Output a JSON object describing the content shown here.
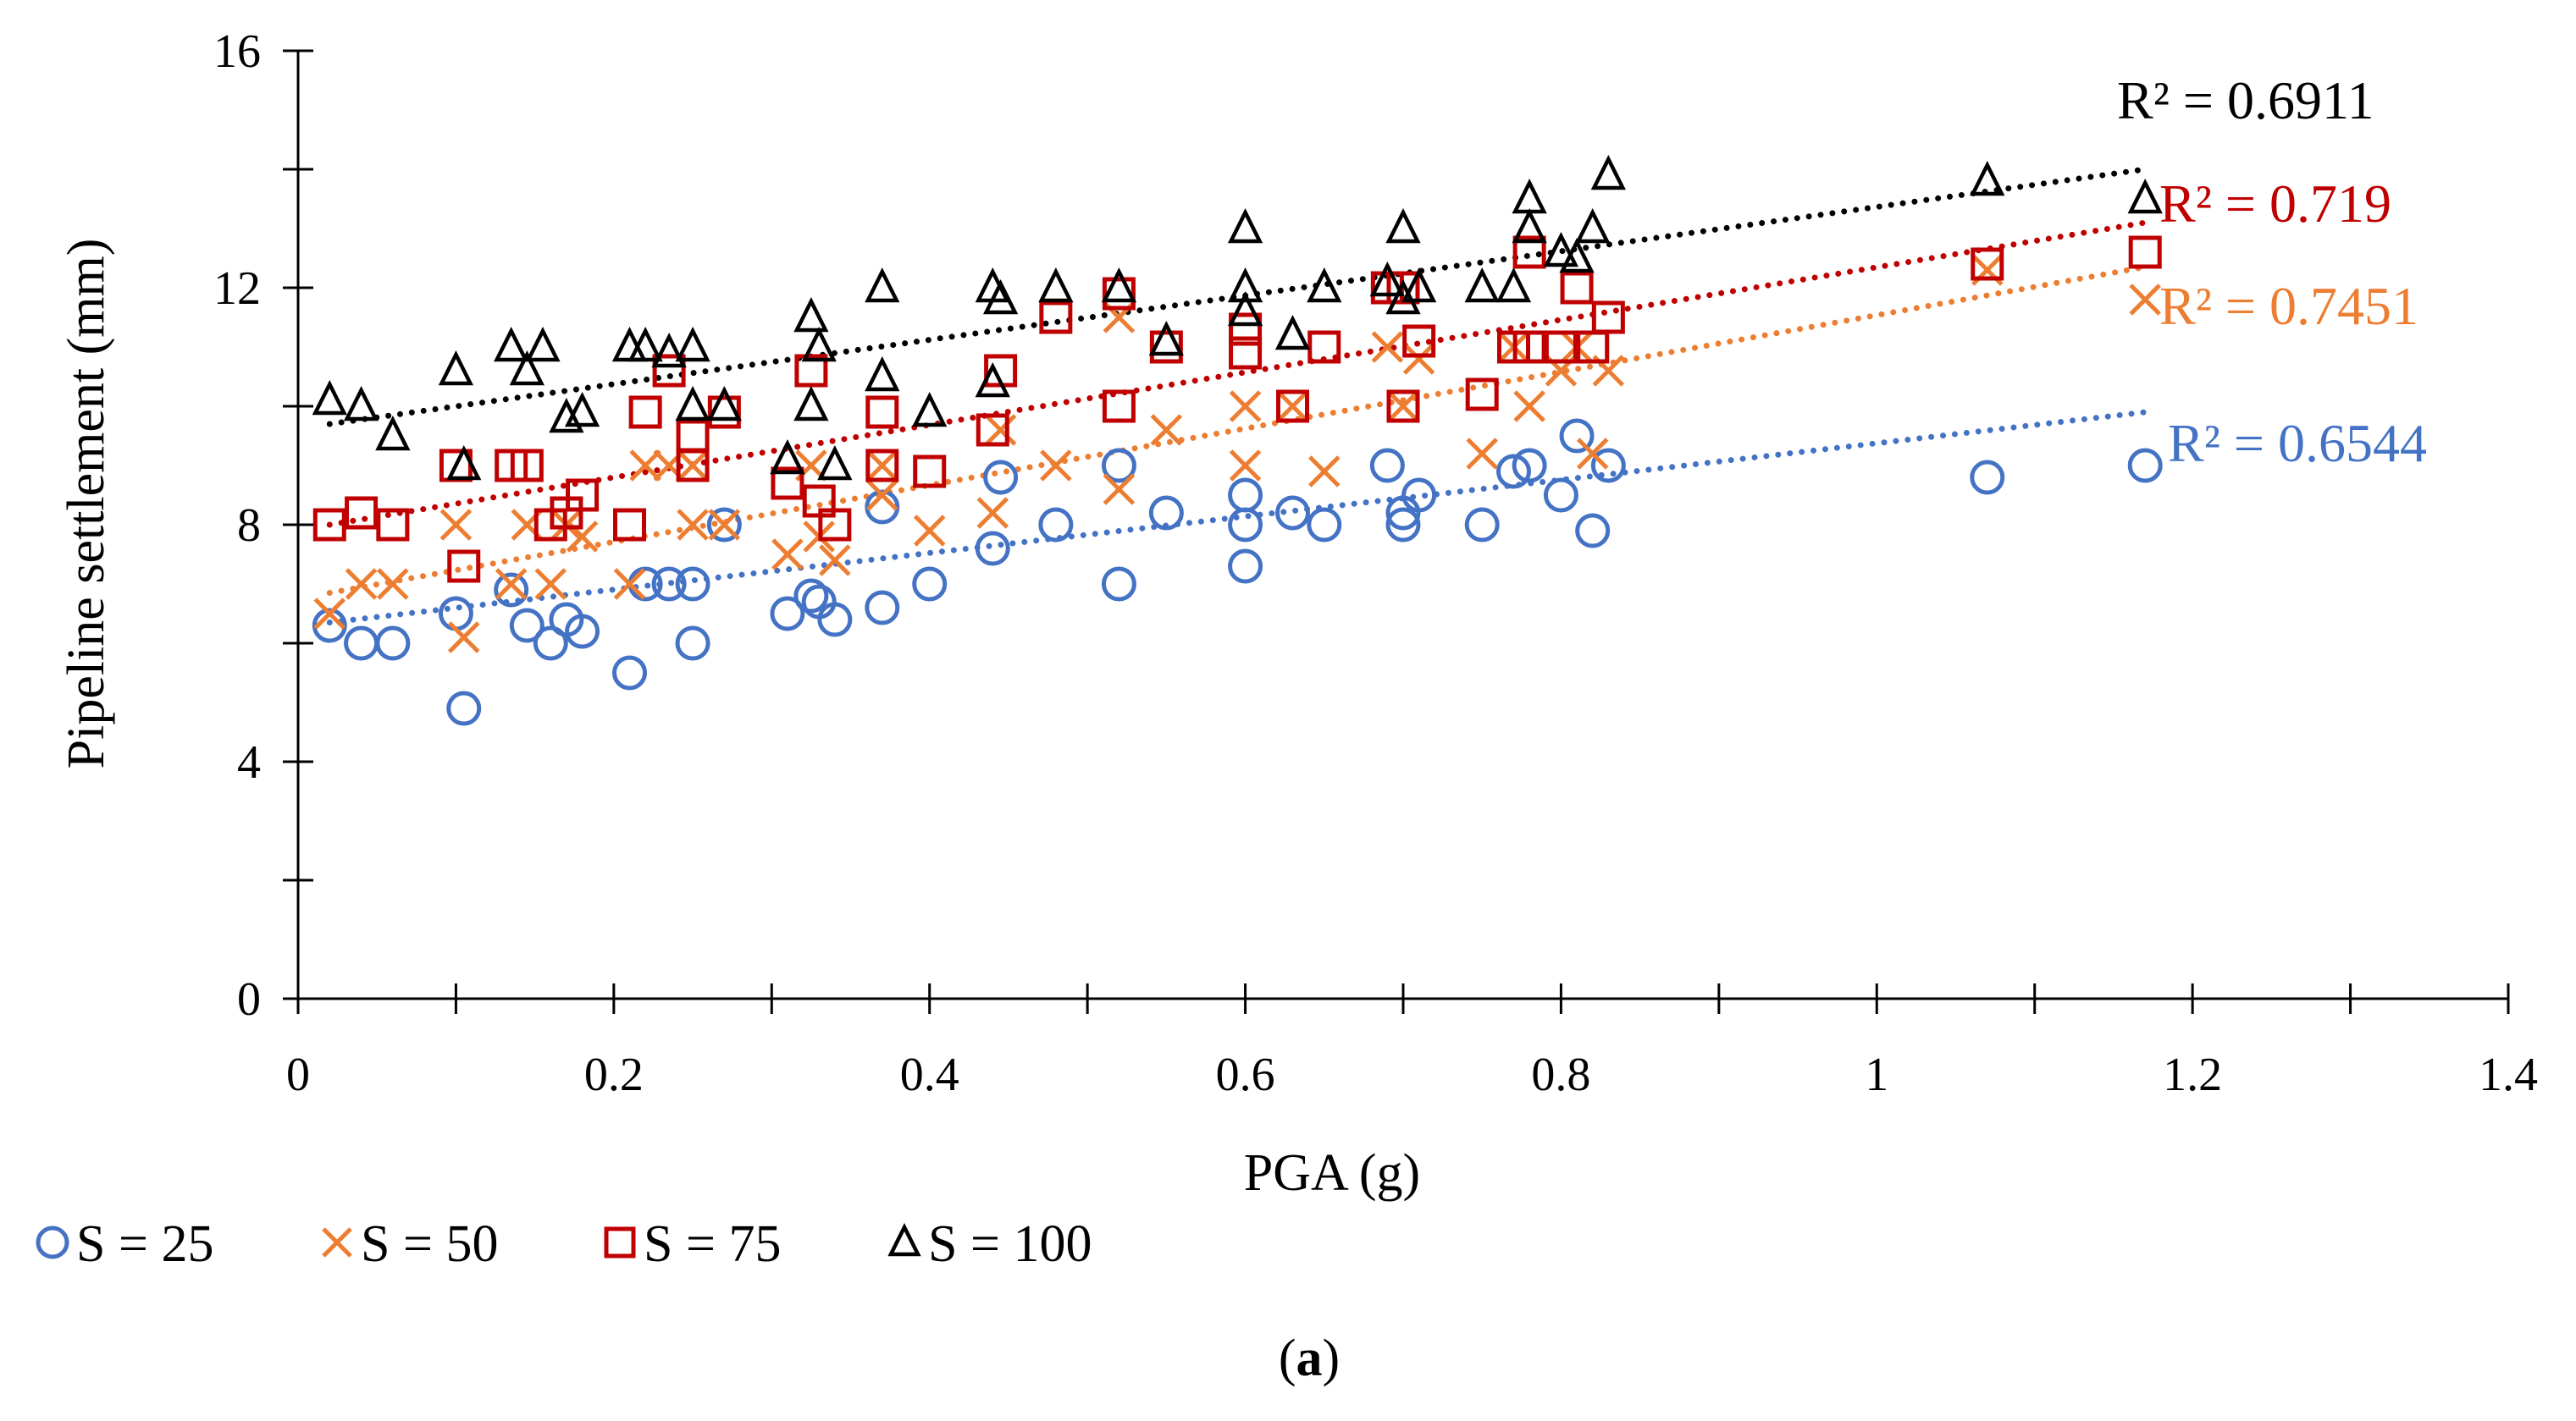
{
  "chart_data": {
    "type": "scatter",
    "title": "",
    "xlabel": "PGA (g)",
    "ylabel": "Pipeline settlement (mm)",
    "xlim": [
      0,
      1.4
    ],
    "ylim": [
      0,
      16
    ],
    "xticks": [
      0,
      0.2,
      0.4,
      0.6,
      0.8,
      1,
      1.2,
      1.4
    ],
    "xtick_labels": [
      "0",
      "0.2",
      "0.4",
      "0.6",
      "0.8",
      "1",
      "1.2",
      "1.4"
    ],
    "yticks": [
      0,
      4,
      8,
      12,
      16
    ],
    "ytick_labels": [
      "0",
      "4",
      "8",
      "12",
      "16"
    ],
    "grid": false,
    "legend_position": "bottom-left",
    "caption": {
      "open": "(",
      "letter": "a",
      "close": ")"
    },
    "series": [
      {
        "name": "S = 25",
        "marker": "circle",
        "color": "#4472C4",
        "r2_label": "R² = 0.6544",
        "trend": {
          "x": [
            0.02,
            1.17
          ],
          "y": [
            6.35,
            9.9
          ]
        },
        "points": [
          [
            0.02,
            6.3
          ],
          [
            0.04,
            6.0
          ],
          [
            0.06,
            6.0
          ],
          [
            0.1,
            6.5
          ],
          [
            0.105,
            4.9
          ],
          [
            0.135,
            6.9
          ],
          [
            0.145,
            6.3
          ],
          [
            0.16,
            6.0
          ],
          [
            0.17,
            6.4
          ],
          [
            0.18,
            6.2
          ],
          [
            0.21,
            5.5
          ],
          [
            0.22,
            7.0
          ],
          [
            0.235,
            7.0
          ],
          [
            0.25,
            7.0
          ],
          [
            0.25,
            6.0
          ],
          [
            0.27,
            8.0
          ],
          [
            0.31,
            6.5
          ],
          [
            0.325,
            6.8
          ],
          [
            0.33,
            6.7
          ],
          [
            0.34,
            6.4
          ],
          [
            0.37,
            6.6
          ],
          [
            0.37,
            8.3
          ],
          [
            0.4,
            7.0
          ],
          [
            0.44,
            7.6
          ],
          [
            0.445,
            8.8
          ],
          [
            0.48,
            8.0
          ],
          [
            0.52,
            9.0
          ],
          [
            0.52,
            7.0
          ],
          [
            0.55,
            8.2
          ],
          [
            0.6,
            8.5
          ],
          [
            0.6,
            8.0
          ],
          [
            0.6,
            7.3
          ],
          [
            0.63,
            8.2
          ],
          [
            0.65,
            8.0
          ],
          [
            0.69,
            9.0
          ],
          [
            0.7,
            8.0
          ],
          [
            0.7,
            8.2
          ],
          [
            0.71,
            8.5
          ],
          [
            0.75,
            8.0
          ],
          [
            0.77,
            8.9
          ],
          [
            0.78,
            9.0
          ],
          [
            0.8,
            8.5
          ],
          [
            0.81,
            9.5
          ],
          [
            0.82,
            7.9
          ],
          [
            0.83,
            9.0
          ],
          [
            1.07,
            8.8
          ],
          [
            1.17,
            9.0
          ]
        ]
      },
      {
        "name": "S = 50",
        "marker": "x",
        "color": "#ED7D31",
        "r2_label": "R² = 0.7451",
        "trend": {
          "x": [
            0.02,
            1.17
          ],
          "y": [
            6.85,
            12.35
          ]
        },
        "points": [
          [
            0.02,
            6.5
          ],
          [
            0.04,
            7.0
          ],
          [
            0.06,
            7.0
          ],
          [
            0.1,
            8.0
          ],
          [
            0.105,
            6.1
          ],
          [
            0.135,
            7.0
          ],
          [
            0.145,
            8.0
          ],
          [
            0.16,
            7.0
          ],
          [
            0.17,
            8.0
          ],
          [
            0.18,
            7.8
          ],
          [
            0.21,
            7.0
          ],
          [
            0.22,
            9.0
          ],
          [
            0.235,
            9.0
          ],
          [
            0.25,
            9.0
          ],
          [
            0.25,
            8.0
          ],
          [
            0.27,
            8.0
          ],
          [
            0.31,
            7.5
          ],
          [
            0.325,
            9.0
          ],
          [
            0.33,
            7.8
          ],
          [
            0.34,
            7.4
          ],
          [
            0.37,
            8.5
          ],
          [
            0.37,
            9.0
          ],
          [
            0.4,
            7.9
          ],
          [
            0.44,
            8.2
          ],
          [
            0.445,
            9.6
          ],
          [
            0.48,
            9.0
          ],
          [
            0.52,
            11.5
          ],
          [
            0.52,
            8.6
          ],
          [
            0.55,
            9.6
          ],
          [
            0.6,
            10.0
          ],
          [
            0.6,
            9.0
          ],
          [
            0.63,
            10.0
          ],
          [
            0.65,
            8.9
          ],
          [
            0.69,
            11.0
          ],
          [
            0.7,
            10.0
          ],
          [
            0.71,
            10.8
          ],
          [
            0.75,
            9.2
          ],
          [
            0.77,
            11.0
          ],
          [
            0.78,
            10.0
          ],
          [
            0.8,
            10.6
          ],
          [
            0.81,
            11.0
          ],
          [
            0.82,
            9.2
          ],
          [
            0.83,
            10.6
          ],
          [
            1.07,
            12.3
          ],
          [
            1.17,
            11.8
          ]
        ]
      },
      {
        "name": "S = 75",
        "marker": "square",
        "color": "#C00000",
        "r2_label": "R² = 0.719",
        "trend": {
          "x": [
            0.02,
            1.17
          ],
          "y": [
            8.0,
            13.1
          ]
        },
        "points": [
          [
            0.02,
            8.0
          ],
          [
            0.04,
            8.2
          ],
          [
            0.06,
            8.0
          ],
          [
            0.1,
            9.0
          ],
          [
            0.105,
            7.3
          ],
          [
            0.135,
            9.0
          ],
          [
            0.145,
            9.0
          ],
          [
            0.16,
            8.0
          ],
          [
            0.17,
            8.2
          ],
          [
            0.18,
            8.5
          ],
          [
            0.21,
            8.0
          ],
          [
            0.22,
            9.9
          ],
          [
            0.235,
            10.6
          ],
          [
            0.25,
            9.5
          ],
          [
            0.25,
            9.0
          ],
          [
            0.27,
            9.9
          ],
          [
            0.31,
            8.7
          ],
          [
            0.325,
            10.6
          ],
          [
            0.33,
            8.4
          ],
          [
            0.34,
            8.0
          ],
          [
            0.37,
            9.9
          ],
          [
            0.37,
            9.0
          ],
          [
            0.4,
            8.9
          ],
          [
            0.44,
            9.6
          ],
          [
            0.445,
            10.6
          ],
          [
            0.48,
            11.5
          ],
          [
            0.52,
            11.9
          ],
          [
            0.52,
            10.0
          ],
          [
            0.55,
            11.0
          ],
          [
            0.6,
            11.3
          ],
          [
            0.6,
            10.9
          ],
          [
            0.63,
            10.0
          ],
          [
            0.65,
            11.0
          ],
          [
            0.69,
            12.0
          ],
          [
            0.7,
            12.0
          ],
          [
            0.7,
            10.0
          ],
          [
            0.71,
            11.1
          ],
          [
            0.75,
            10.2
          ],
          [
            0.77,
            11.0
          ],
          [
            0.78,
            12.6
          ],
          [
            0.78,
            11.0
          ],
          [
            0.8,
            11.0
          ],
          [
            0.81,
            12.0
          ],
          [
            0.82,
            11.0
          ],
          [
            0.83,
            11.5
          ],
          [
            1.07,
            12.4
          ],
          [
            1.17,
            12.6
          ]
        ]
      },
      {
        "name": "S = 100",
        "marker": "triangle",
        "color": "#000000",
        "r2_label": "R² = 0.6911",
        "trend": {
          "x": [
            0.02,
            1.17
          ],
          "y": [
            9.7,
            14.0
          ]
        },
        "points": [
          [
            0.02,
            10.1
          ],
          [
            0.04,
            10.0
          ],
          [
            0.06,
            9.5
          ],
          [
            0.1,
            10.6
          ],
          [
            0.105,
            9.0
          ],
          [
            0.135,
            11.0
          ],
          [
            0.145,
            10.6
          ],
          [
            0.155,
            11.0
          ],
          [
            0.17,
            9.8
          ],
          [
            0.18,
            9.9
          ],
          [
            0.21,
            11.0
          ],
          [
            0.22,
            11.0
          ],
          [
            0.235,
            10.9
          ],
          [
            0.25,
            11.0
          ],
          [
            0.25,
            10.0
          ],
          [
            0.27,
            10.0
          ],
          [
            0.31,
            9.1
          ],
          [
            0.325,
            11.5
          ],
          [
            0.33,
            11.0
          ],
          [
            0.325,
            10.0
          ],
          [
            0.34,
            9.0
          ],
          [
            0.37,
            12.0
          ],
          [
            0.37,
            10.5
          ],
          [
            0.4,
            9.9
          ],
          [
            0.44,
            10.4
          ],
          [
            0.44,
            12.0
          ],
          [
            0.445,
            11.8
          ],
          [
            0.48,
            12.0
          ],
          [
            0.52,
            12.0
          ],
          [
            0.55,
            11.1
          ],
          [
            0.6,
            13.0
          ],
          [
            0.6,
            12.0
          ],
          [
            0.6,
            11.6
          ],
          [
            0.63,
            11.2
          ],
          [
            0.65,
            12.0
          ],
          [
            0.69,
            12.1
          ],
          [
            0.7,
            13.0
          ],
          [
            0.7,
            11.8
          ],
          [
            0.71,
            12.0
          ],
          [
            0.75,
            12.0
          ],
          [
            0.77,
            12.0
          ],
          [
            0.78,
            13.5
          ],
          [
            0.78,
            13.0
          ],
          [
            0.8,
            12.6
          ],
          [
            0.81,
            12.5
          ],
          [
            0.82,
            13.0
          ],
          [
            0.83,
            13.9
          ],
          [
            1.07,
            13.8
          ],
          [
            1.17,
            13.5
          ]
        ]
      }
    ]
  }
}
